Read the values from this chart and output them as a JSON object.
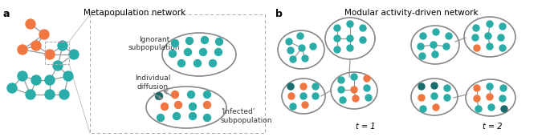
{
  "colors": {
    "teal": "#2AACA8",
    "orange": "#F07741",
    "dark_teal": "#1A6B6B",
    "gray_edge": "#999999",
    "gray_circle": "#888888"
  },
  "panel_a_title": "Metapopulation network",
  "panel_b_title": "Modular activity-driven network",
  "label_a": "a",
  "label_b": "b",
  "ignorant_label": "Ignorant\nsubpopulation",
  "infected_label": "'Infected'\nsubpopulation",
  "diffusion_label": "Individual\ndiffusion",
  "t1_label": "t = 1",
  "t2_label": "t = 2"
}
